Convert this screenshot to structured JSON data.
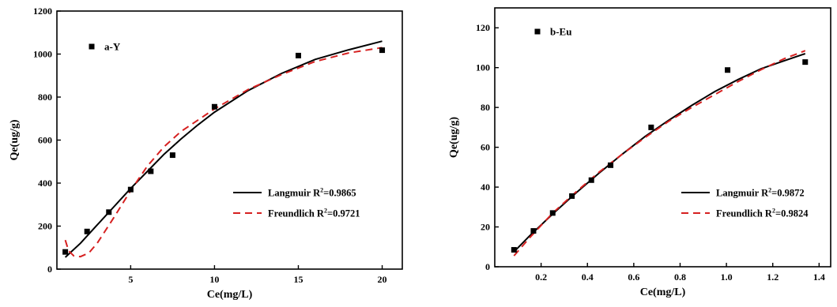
{
  "chart_data": [
    {
      "type": "scatter",
      "panel_label": "a-Y",
      "xlabel": "Ce(mg/L)",
      "ylabel": "Qe(ug/g)",
      "xlim": [
        0.6,
        21.2
      ],
      "ylim": [
        0,
        1200
      ],
      "xticks": [
        5,
        10,
        15,
        20
      ],
      "yticks": [
        0,
        200,
        400,
        600,
        800,
        1000,
        1200
      ],
      "points": {
        "x": [
          1.1,
          2.4,
          3.7,
          5.0,
          6.2,
          7.5,
          10.0,
          15.0,
          20.0
        ],
        "y": [
          80,
          175,
          265,
          370,
          455,
          530,
          755,
          993,
          1018
        ]
      },
      "fits": [
        {
          "legend": "Langmuir",
          "r2_label": "R",
          "r2_value": "=0.9865",
          "style": "solid",
          "color": "#000000",
          "x": [
            1.1,
            2,
            3,
            4,
            5,
            6,
            7,
            8,
            9,
            10,
            12,
            14,
            16,
            18,
            20
          ],
          "y": [
            55,
            120,
            205,
            290,
            375,
            455,
            535,
            605,
            670,
            730,
            830,
            910,
            975,
            1020,
            1060
          ]
        },
        {
          "legend": "Freundlich",
          "r2_label": "R",
          "r2_value": "=0.9721",
          "style": "dashed",
          "color": "#d62020",
          "x": [
            1.1,
            1.3,
            1.6,
            2,
            2.5,
            3,
            4,
            5,
            6,
            7,
            8,
            10,
            12,
            14,
            16,
            18,
            20
          ],
          "y": [
            135,
            85,
            62,
            58,
            75,
            120,
            240,
            365,
            480,
            570,
            640,
            745,
            835,
            905,
            965,
            1005,
            1030
          ]
        }
      ],
      "legend_position": "bottom-right",
      "grid": false
    },
    {
      "type": "scatter",
      "panel_label": "b-Eu",
      "xlabel": "Ce(mg/L)",
      "ylabel": "Qe(ug/g)",
      "xlim": [
        0,
        1.45
      ],
      "ylim": [
        0,
        130
      ],
      "xticks": [
        0.2,
        0.4,
        0.6,
        0.8,
        1.0,
        1.2,
        1.4
      ],
      "yticks": [
        0,
        20,
        40,
        60,
        80,
        100,
        120
      ],
      "points": {
        "x": [
          0.083,
          0.167,
          0.25,
          0.333,
          0.417,
          0.5,
          0.675,
          1.005,
          1.34
        ],
        "y": [
          8.5,
          18,
          27,
          35.5,
          43.5,
          51,
          70,
          98.8,
          102.8
        ]
      },
      "fits": [
        {
          "legend": "Langmuir",
          "r2_label": "R",
          "r2_value": "=0.9872",
          "style": "solid",
          "color": "#000000",
          "x": [
            0.083,
            0.15,
            0.25,
            0.35,
            0.45,
            0.55,
            0.65,
            0.75,
            0.85,
            0.95,
            1.05,
            1.15,
            1.25,
            1.34
          ],
          "y": [
            7.5,
            15.5,
            26.5,
            37,
            47,
            56.5,
            65.5,
            73.5,
            81,
            88,
            94,
            99.5,
            103.5,
            107
          ]
        },
        {
          "legend": "Freundlich",
          "r2_label": "R",
          "r2_value": "=0.9824",
          "style": "dashed",
          "color": "#d62020",
          "x": [
            0.083,
            0.15,
            0.25,
            0.35,
            0.45,
            0.55,
            0.65,
            0.75,
            0.85,
            0.95,
            1.05,
            1.15,
            1.25,
            1.34
          ],
          "y": [
            5.5,
            14.5,
            27,
            37.5,
            47.5,
            56.5,
            65,
            73,
            80,
            86.5,
            93,
            99,
            104.5,
            108.5
          ]
        }
      ],
      "legend_position": "bottom-right",
      "grid": false
    }
  ]
}
